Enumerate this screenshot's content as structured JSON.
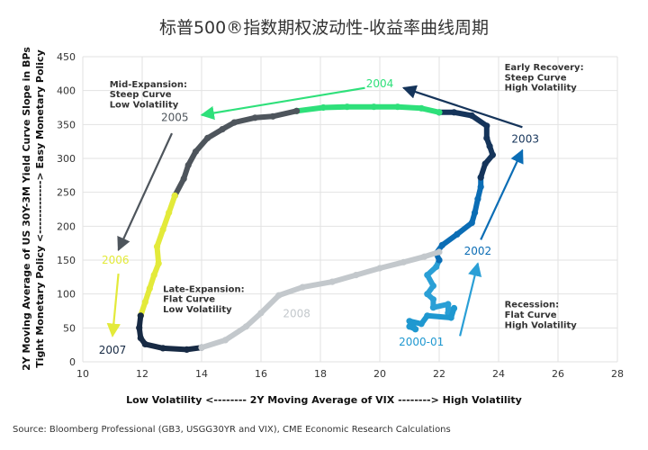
{
  "chart_data": {
    "type": "line",
    "title": "标普500®指数期权波动性-收益率曲线周期",
    "xlabel": "Low Volatility <--------  2Y Moving Average of VIX  --------> High Volatility",
    "ylabel_line1": "2Y Moving Average of US 30Y-3M Yield Curve Slope in BPs",
    "ylabel_line2": "Tight Monetary Policy <-------------> Easy Monetary Policy",
    "xlim": [
      10,
      28
    ],
    "ylim": [
      0,
      450
    ],
    "xticks": [
      "10",
      "12",
      "14",
      "16",
      "18",
      "20",
      "22",
      "24",
      "26",
      "28"
    ],
    "yticks": [
      "0",
      "50",
      "100",
      "150",
      "200",
      "250",
      "300",
      "350",
      "400",
      "450"
    ],
    "grid": true,
    "series": [
      {
        "color": "#2a9fd6",
        "values": [
          [
            22.5,
            79
          ],
          [
            22.3,
            72
          ],
          [
            22.3,
            85
          ],
          [
            21.8,
            80
          ],
          [
            21.8,
            92
          ],
          [
            21.6,
            100
          ],
          [
            21.8,
            112
          ],
          [
            21.6,
            128
          ],
          [
            21.9,
            140
          ],
          [
            22,
            150
          ]
        ]
      },
      {
        "color": "#1f98d0",
        "values": [
          [
            21.0,
            52
          ],
          [
            21.2,
            48
          ],
          [
            21.0,
            60
          ],
          [
            21.4,
            56
          ],
          [
            21.6,
            68
          ],
          [
            22.4,
            65
          ],
          [
            22.5,
            79
          ]
        ]
      },
      {
        "color": "#0b6db5",
        "values": [
          [
            22,
            150
          ],
          [
            21.9,
            160
          ],
          [
            22.1,
            172
          ],
          [
            22.6,
            188
          ],
          [
            23.1,
            205
          ],
          [
            23.2,
            220
          ],
          [
            23.3,
            240
          ],
          [
            23.4,
            258
          ],
          [
            23.4,
            272
          ]
        ]
      },
      {
        "color": "#15345a",
        "values": [
          [
            23.4,
            272
          ],
          [
            23.55,
            292
          ],
          [
            23.8,
            305
          ],
          [
            23.7,
            318
          ],
          [
            23.6,
            330
          ],
          [
            23.6,
            348
          ],
          [
            23.1,
            363
          ],
          [
            22.5,
            368
          ],
          [
            22.0,
            368
          ]
        ]
      },
      {
        "color": "#2ee07a",
        "values": [
          [
            22.0,
            368
          ],
          [
            21.4,
            374
          ],
          [
            20.6,
            376
          ],
          [
            19.8,
            376
          ],
          [
            18.9,
            376
          ],
          [
            18.1,
            375
          ],
          [
            17.2,
            370
          ]
        ]
      },
      {
        "color": "#4e555c",
        "values": [
          [
            17.2,
            370
          ],
          [
            16.4,
            362
          ],
          [
            15.8,
            360
          ],
          [
            15.1,
            353
          ],
          [
            14.7,
            343
          ],
          [
            14.2,
            330
          ],
          [
            13.8,
            310
          ],
          [
            13.55,
            290
          ],
          [
            13.4,
            270
          ],
          [
            13.1,
            245
          ]
        ]
      },
      {
        "color": "#e3ea3a",
        "values": [
          [
            13.1,
            245
          ],
          [
            12.9,
            220
          ],
          [
            12.7,
            195
          ],
          [
            12.5,
            170
          ],
          [
            12.55,
            145
          ],
          [
            12.4,
            128
          ],
          [
            12.25,
            108
          ],
          [
            12.1,
            88
          ],
          [
            11.95,
            68
          ]
        ]
      },
      {
        "color": "#172a44",
        "values": [
          [
            11.95,
            68
          ],
          [
            11.9,
            50
          ],
          [
            11.95,
            35
          ],
          [
            12.1,
            26
          ],
          [
            12.7,
            20
          ],
          [
            13.5,
            18
          ],
          [
            14.0,
            21
          ]
        ]
      },
      {
        "color": "#c3c8cc",
        "values": [
          [
            14.0,
            21
          ],
          [
            14.8,
            32
          ],
          [
            15.5,
            52
          ],
          [
            16.0,
            72
          ],
          [
            16.6,
            98
          ],
          [
            17.4,
            110
          ],
          [
            18.4,
            118
          ],
          [
            19.2,
            128
          ],
          [
            20.0,
            138
          ],
          [
            20.8,
            147
          ],
          [
            21.5,
            155
          ],
          [
            22.0,
            162
          ]
        ]
      }
    ],
    "annotations": [
      {
        "text": "Early Recovery:",
        "x": 24.2,
        "y": 430
      },
      {
        "text": "Steep Curve",
        "x": 24.2,
        "y": 415
      },
      {
        "text": "High Volatility",
        "x": 24.2,
        "y": 400
      },
      {
        "text": "Mid-Expansion:",
        "x": 10.9,
        "y": 405
      },
      {
        "text": "Steep Curve",
        "x": 10.9,
        "y": 390
      },
      {
        "text": "Low Volatility",
        "x": 10.9,
        "y": 375
      },
      {
        "text": "Late-Expansion:",
        "x": 12.7,
        "y": 103
      },
      {
        "text": "Flat Curve",
        "x": 12.7,
        "y": 88
      },
      {
        "text": "Low Volatility",
        "x": 12.7,
        "y": 73
      },
      {
        "text": "Recession:",
        "x": 24.2,
        "y": 80
      },
      {
        "text": "Flat Curve",
        "x": 24.2,
        "y": 65
      },
      {
        "text": "High Volatility",
        "x": 24.2,
        "y": 50
      }
    ],
    "year_labels": [
      {
        "text": "2004",
        "x": 20.0,
        "y": 405,
        "color": "#2ee07a"
      },
      {
        "text": "2003",
        "x": 24.9,
        "y": 323,
        "color": "#15345a"
      },
      {
        "text": "2005",
        "x": 13.1,
        "y": 355,
        "color": "#4e555c"
      },
      {
        "text": "2006",
        "x": 11.1,
        "y": 145,
        "color": "#e3ea3a"
      },
      {
        "text": "2002",
        "x": 23.3,
        "y": 158,
        "color": "#0b6db5"
      },
      {
        "text": "2008",
        "x": 17.2,
        "y": 66,
        "color": "#c3c8cc"
      },
      {
        "text": "2007",
        "x": 11.0,
        "y": 12,
        "color": "#172a44"
      },
      {
        "text": "2000-01",
        "x": 21.4,
        "y": 24,
        "color": "#1f98d0"
      }
    ],
    "arrows": [
      {
        "from": [
          19.5,
          404
        ],
        "to": [
          14.0,
          364
        ],
        "color": "#2ee07a"
      },
      {
        "from": [
          24.8,
          346
        ],
        "to": [
          20.8,
          404
        ],
        "color": "#15345a"
      },
      {
        "from": [
          13.0,
          337
        ],
        "to": [
          11.2,
          165
        ],
        "color": "#4e555c"
      },
      {
        "from": [
          11.2,
          130
        ],
        "to": [
          11.0,
          38
        ],
        "color": "#e3ea3a"
      },
      {
        "from": [
          23.4,
          180
        ],
        "to": [
          24.8,
          312
        ],
        "color": "#0b6db5"
      },
      {
        "from": [
          22.7,
          38
        ],
        "to": [
          23.3,
          145
        ],
        "color": "#2a9fd6"
      }
    ]
  },
  "source": "Source: Bloomberg Professional (GB3, USGG30YR and VIX), CME Economic Research Calculations"
}
